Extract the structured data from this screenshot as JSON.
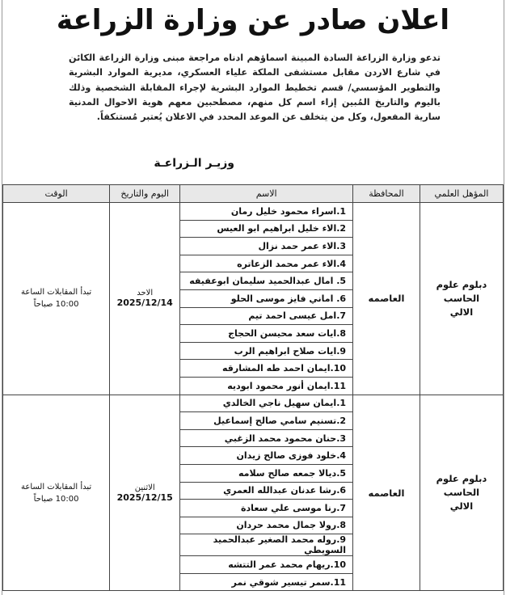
{
  "title": "اعلان صادر عن وزارة الزراعة",
  "body": "تدعو وزارة الزراعة السادة المبينة اسماؤهم ادناه مراجعة مبنى وزارة الزراعة الكائن في شارع الاردن مقابل مستشفى الملكة علياء العسكري، مديرية الموارد البشرية والتطوير المؤسسي/ قسم تخطيط الموارد البشرية لإجراء المقابلة الشخصية وذلك باليوم والتاريخ المُبين إزاء اسم كل منهم، مصطحبين معهم هوية الاحوال المدنية سارية المفعول، وكل من يتخلف عن الموعد المحدد في الاعلان يُعتبر مُستنكفاً.",
  "signature": "وزيـر الـزراعـة",
  "table": {
    "headers": {
      "qualification": "المؤهل العلمي",
      "governorate": "المحافظة",
      "name": "الاسم",
      "date": "اليوم والتاريخ",
      "time": "الوقت"
    },
    "groups": [
      {
        "qualification": "دبلوم علوم الحاسب الالي",
        "governorate": "العاصمه",
        "day": "الاحد",
        "date": "2025/12/14",
        "time": "تبدأ المقابلات الساعة 10:00 صباحاً",
        "names": [
          "1.اسراء محمود خليل رمان",
          "2.الاء خليل ابراهيم ابو العيس",
          "3.الاء عمر حمد نزال",
          "4.الاء عمر محمد الزعاتره",
          "5. امال عبدالحميد سليمان ابوعفيفه",
          "6. اماني فايز موسى الحلو",
          "7.امل عيسى احمد تيم",
          "8.ايات سعد محيسن الحجاج",
          "9.ايات صلاح ابراهيم الرب",
          "10.ايمان احمد طه المشارقه",
          "11.ايمان أنور محمود ابوديه"
        ]
      },
      {
        "qualification": "دبلوم علوم الحاسب الالي",
        "governorate": "العاصمه",
        "day": "الاثنين",
        "date": "2025/12/15",
        "time": "تبدأ المقابلات الساعة 10:00 صباحاً",
        "names": [
          "1.ايمان سهيل ناجي الخالدي",
          "2.تسنيم سامي صالح إسماعيل",
          "3.حنان محمود محمد الزغبي",
          "4.خلود فوزى صالح زيدان",
          "5.ديالا جمعه صالح سلامه",
          "6.رشا عدنان عبدالله العمري",
          "7.رنا موسى علي سعادة",
          "8.رولا جمال محمد حردان",
          "9.روله محمد الصغير عبدالحميد السويطي",
          "10.ريهام محمد عمر التتشه",
          "11.سمر تيسير شوقي نمر"
        ]
      }
    ]
  }
}
